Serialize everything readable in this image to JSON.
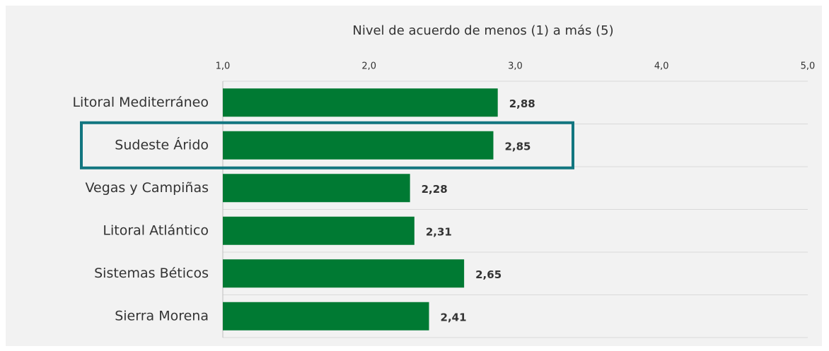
{
  "chart_data": {
    "type": "bar",
    "orientation": "horizontal",
    "x_label": "Nivel de acuerdo de menos (1) a más (5)",
    "categories": [
      "Litoral Mediterráneo",
      "Sudeste Árido",
      "Vegas y Campiñas",
      "Litoral Atlántico",
      "Sistemas Béticos",
      "Sierra Morena"
    ],
    "values": [
      2.88,
      2.85,
      2.28,
      2.31,
      2.65,
      2.41
    ],
    "value_labels": [
      "2,88",
      "2,85",
      "2,28",
      "2,31",
      "2,65",
      "2,41"
    ],
    "color": "#007a33",
    "xlim": [
      1,
      5
    ],
    "xticks": [
      {
        "value": 1,
        "label": "1,0"
      },
      {
        "value": 2,
        "label": "2,0"
      },
      {
        "value": 3,
        "label": "3,0"
      },
      {
        "value": 4,
        "label": "4,0"
      },
      {
        "value": 5,
        "label": "5,0"
      }
    ],
    "grid": true,
    "highlight": 1,
    "highlight_color": "#127680"
  }
}
